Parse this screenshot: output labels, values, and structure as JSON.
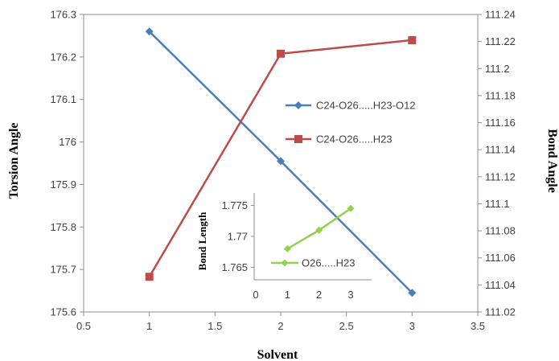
{
  "chart_data": [
    {
      "type": "line",
      "xlabel": "Solvent",
      "ylabel": "Torsion Angle",
      "y2label": "Bond Angle",
      "xlim": [
        0.5,
        3.5
      ],
      "ylim": [
        175.6,
        176.3
      ],
      "y2lim": [
        111.02,
        111.24
      ],
      "x_ticks": [
        "0.5",
        "1",
        "1.5",
        "2",
        "2.5",
        "3",
        "3.5"
      ],
      "y_ticks": [
        "175.6",
        "175.7",
        "175.8",
        "175.9",
        "176",
        "176.1",
        "176.2",
        "176.3"
      ],
      "y2_ticks": [
        "111.02",
        "111.04",
        "111.06",
        "111.08",
        "111.1",
        "111.12",
        "111.14",
        "111.16",
        "111.18",
        "111.2",
        "111.22",
        "111.24"
      ],
      "grid": false,
      "legend_position": "right",
      "series": [
        {
          "name": "C24-O26.....H23-O12",
          "axis": "left",
          "color": "#4a7ebb",
          "marker": "diamond",
          "x": [
            1,
            2,
            3
          ],
          "values": [
            176.26,
            175.955,
            175.645
          ]
        },
        {
          "name": "C24-O26.....H23",
          "axis": "right",
          "color": "#be4b48",
          "marker": "square",
          "x": [
            1,
            2,
            3
          ],
          "values": [
            111.046,
            111.211,
            111.221
          ]
        }
      ]
    },
    {
      "type": "line",
      "ylabel": "Bond Length",
      "xlim": [
        0,
        3
      ],
      "ylim": [
        1.763,
        1.777
      ],
      "x_ticks": [
        "0",
        "1",
        "2",
        "3"
      ],
      "y_ticks": [
        "1.765",
        "1.77",
        "1.775"
      ],
      "legend_position": "bottom-right",
      "series": [
        {
          "name": "O26.....H23",
          "color": "#92d050",
          "marker": "diamond",
          "x": [
            1,
            2,
            3
          ],
          "values": [
            1.768,
            1.771,
            1.7745
          ]
        }
      ]
    }
  ]
}
